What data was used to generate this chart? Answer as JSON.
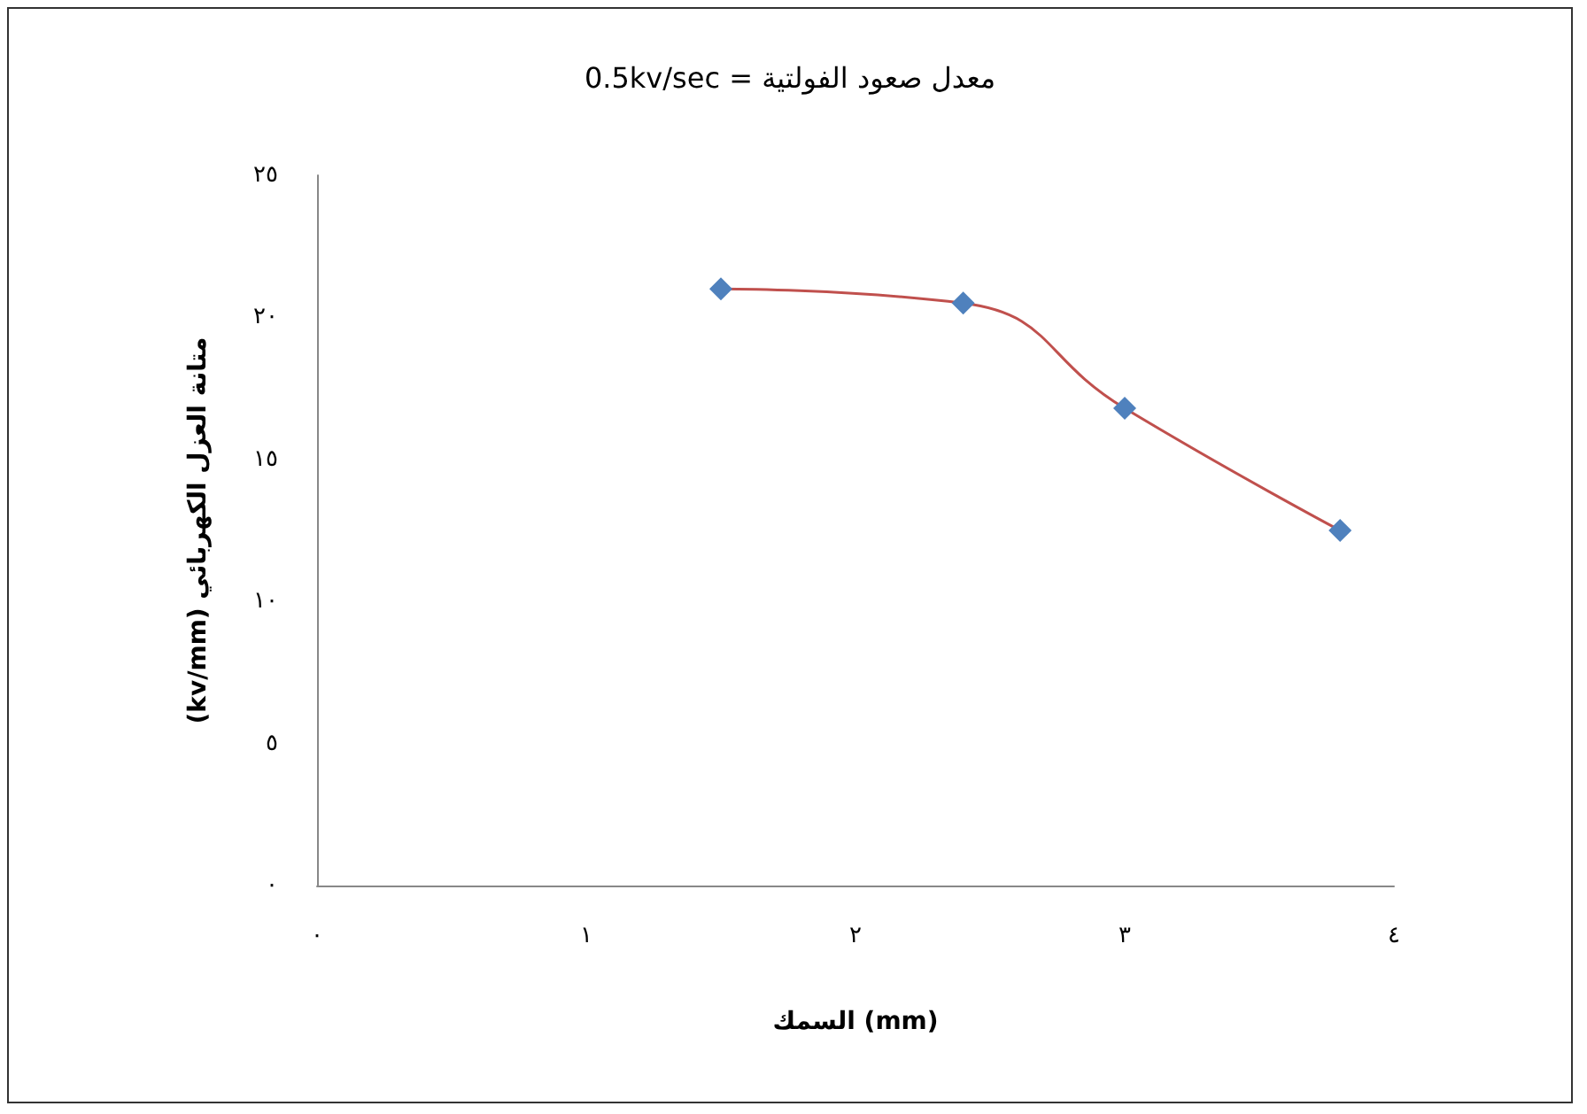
{
  "chart_data": {
    "type": "line",
    "title": "0.5kv/sec = معدل صعود الفولتية",
    "xlabel": "السمك (mm)",
    "ylabel": "(kv/mm) متانة العزل الكهربائي",
    "x": [
      1.5,
      2.4,
      3.0,
      3.8
    ],
    "series": [
      {
        "color": "#c0504d",
        "colors": [
          "#4f81bd",
          "#4f81bd",
          "#4f81bd",
          "#4f81bd"
        ],
        "values": [
          21,
          20.5,
          16.8,
          12.5
        ]
      }
    ],
    "xlim": [
      0,
      4
    ],
    "xticks": [
      {
        "value": 0,
        "label": "٠"
      },
      {
        "value": 1,
        "label": "١"
      },
      {
        "value": 2,
        "label": "٢"
      },
      {
        "value": 3,
        "label": "٣"
      },
      {
        "value": 4,
        "label": "٤"
      }
    ],
    "ylim": [
      0,
      25
    ],
    "yticks": [
      {
        "value": 0,
        "label": "٠"
      },
      {
        "value": 5,
        "label": "٥"
      },
      {
        "value": 10,
        "label": "١٠"
      },
      {
        "value": 15,
        "label": "١٥"
      },
      {
        "value": 20,
        "label": "٢٠"
      },
      {
        "value": 25,
        "label": "٢٥"
      }
    ],
    "grid": false,
    "marker": "diamond",
    "line_style": "solid"
  }
}
